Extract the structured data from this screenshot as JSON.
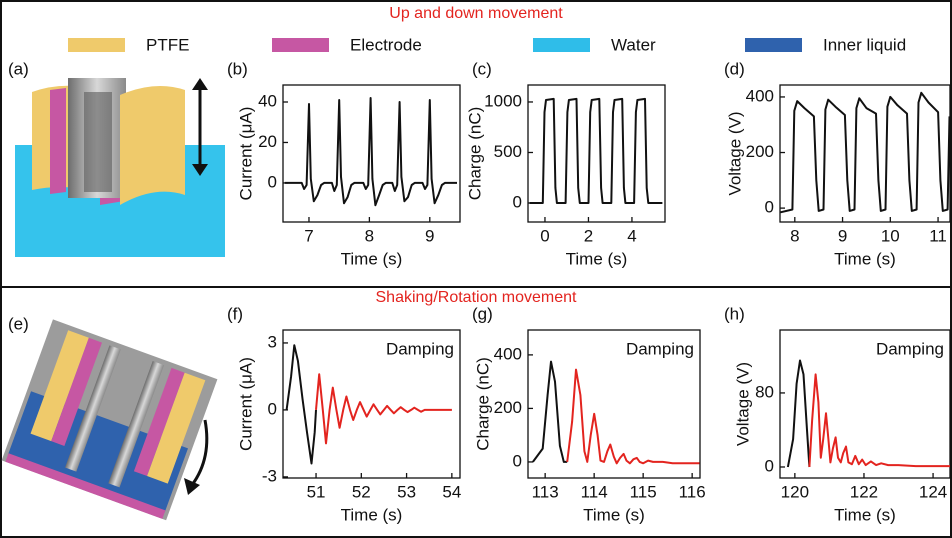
{
  "sections": [
    {
      "title": "Up and down movement"
    },
    {
      "title": "Shaking/Rotation movement"
    }
  ],
  "legend": [
    {
      "name": "PTFE",
      "color": "#efca6b"
    },
    {
      "name": "Electrode",
      "color": "#c657a3"
    },
    {
      "name": "Water",
      "color": "#2fbde9"
    },
    {
      "name": "Inner liquid",
      "color": "#2f62ad"
    }
  ],
  "illustrations": [
    {
      "panel": "(a)"
    },
    {
      "panel": "(e)"
    }
  ],
  "chart_data": [
    {
      "type": "line",
      "panel": "(b)",
      "xlabel": "Time (s)",
      "ylabel": "Current (μA)",
      "xlim": [
        6.57,
        9.5
      ],
      "ylim": [
        -19.3,
        48.4
      ],
      "xticks": [
        7,
        8,
        9
      ],
      "yticks": [
        0,
        20,
        40
      ],
      "x": [
        6.6,
        6.88,
        6.92,
        6.96,
        7.0,
        7.03,
        7.08,
        7.14,
        7.2,
        7.25,
        7.38,
        7.42,
        7.46,
        7.5,
        7.53,
        7.58,
        7.64,
        7.7,
        7.75,
        7.9,
        7.94,
        7.98,
        8.02,
        8.05,
        8.1,
        8.16,
        8.22,
        8.27,
        8.38,
        8.42,
        8.46,
        8.5,
        8.53,
        8.58,
        8.64,
        8.7,
        8.75,
        8.88,
        8.92,
        8.96,
        9.0,
        9.03,
        9.08,
        9.14,
        9.2,
        9.25,
        9.45
      ],
      "series": [
        {
          "color": "#111111",
          "values": [
            0,
            0,
            -3,
            -1,
            39,
            2,
            -9,
            -6,
            -1,
            0,
            0,
            -4,
            -1,
            41,
            3,
            -10,
            -7,
            -1,
            0,
            0,
            -3,
            -1,
            42,
            2,
            -11,
            -6,
            -1,
            0,
            0,
            -4,
            -1,
            40,
            3,
            -9,
            -7,
            -1,
            0,
            0,
            -3,
            -1,
            41,
            2,
            -10,
            -6,
            -1,
            0,
            0
          ]
        }
      ]
    },
    {
      "type": "line",
      "panel": "(c)",
      "xlabel": "Time (s)",
      "ylabel": "Charge (nC)",
      "xlim": [
        -0.78,
        5.52
      ],
      "ylim": [
        -188,
        1168
      ],
      "xticks": [
        0,
        2,
        4
      ],
      "yticks": [
        0,
        500,
        1000
      ],
      "x": [
        -0.7,
        -0.1,
        -0.02,
        0.05,
        0.4,
        0.48,
        0.55,
        0.95,
        1.03,
        1.1,
        1.45,
        1.53,
        1.6,
        2.0,
        2.08,
        2.15,
        2.5,
        2.58,
        2.65,
        3.05,
        3.13,
        3.2,
        3.55,
        3.63,
        3.7,
        4.1,
        4.18,
        4.25,
        4.6,
        4.68,
        4.75,
        5.4
      ],
      "series": [
        {
          "color": "#111111",
          "values": [
            0,
            0,
            900,
            1020,
            1030,
            150,
            0,
            0,
            900,
            1020,
            1030,
            150,
            0,
            0,
            900,
            1020,
            1030,
            150,
            0,
            0,
            900,
            1020,
            1030,
            150,
            0,
            0,
            900,
            1020,
            1030,
            150,
            0,
            0
          ]
        }
      ]
    },
    {
      "type": "line",
      "panel": "(d)",
      "xlabel": "Time (s)",
      "ylabel": "Voltage (V)",
      "xlim": [
        7.69,
        11.25
      ],
      "ylim": [
        -50,
        443
      ],
      "xticks": [
        8,
        9,
        10,
        11
      ],
      "yticks": [
        0,
        200,
        400
      ],
      "x": [
        7.7,
        7.95,
        7.99,
        8.05,
        8.2,
        8.4,
        8.45,
        8.5,
        8.6,
        8.64,
        8.7,
        8.85,
        9.05,
        9.1,
        9.15,
        9.25,
        9.29,
        9.35,
        9.5,
        9.7,
        9.75,
        9.8,
        9.9,
        9.94,
        10.0,
        10.15,
        10.35,
        10.4,
        10.45,
        10.55,
        10.59,
        10.65,
        10.8,
        11.0,
        11.05,
        11.1,
        11.2,
        11.24
      ],
      "series": [
        {
          "color": "#111111",
          "values": [
            -15,
            -5,
            350,
            385,
            360,
            330,
            100,
            -10,
            -5,
            355,
            390,
            365,
            335,
            100,
            -10,
            -5,
            360,
            395,
            360,
            340,
            100,
            -10,
            -5,
            365,
            400,
            370,
            340,
            100,
            -10,
            -5,
            380,
            415,
            380,
            345,
            100,
            -10,
            -5,
            330
          ]
        }
      ]
    },
    {
      "type": "line",
      "panel": "(f)",
      "annotation": "Damping",
      "xlabel": "Time (s)",
      "ylabel": "Current (μA)",
      "xlim": [
        50.27,
        54.18
      ],
      "ylim": [
        -3.05,
        3.58
      ],
      "xticks": [
        51,
        52,
        53,
        54
      ],
      "yticks": [
        -3,
        0,
        3
      ],
      "x": [
        50.35,
        50.45,
        50.52,
        50.6,
        50.7,
        50.8,
        50.9,
        50.97,
        51.0,
        51.07,
        51.15,
        51.22,
        51.3,
        51.37,
        51.45,
        51.52,
        51.6,
        51.67,
        51.75,
        51.82,
        51.9,
        51.97,
        52.05,
        52.12,
        52.2,
        52.27,
        52.35,
        52.42,
        52.5,
        52.57,
        52.65,
        52.72,
        52.8,
        52.87,
        52.95,
        53.02,
        53.1,
        53.17,
        53.25,
        53.32,
        53.4,
        53.6,
        54.0
      ],
      "series": [
        {
          "color": "#111111",
          "values": [
            0,
            1.5,
            2.9,
            2.2,
            0.5,
            -1.0,
            -2.4,
            -1.0,
            0,
            null,
            null,
            null,
            null,
            null,
            null,
            null,
            null,
            null,
            null,
            null,
            null,
            null,
            null,
            null,
            null,
            null,
            null,
            null,
            null,
            null,
            null,
            null,
            null,
            null,
            null,
            null,
            null,
            null,
            null,
            null,
            null,
            null,
            null
          ]
        },
        {
          "color": "#e3241f",
          "values": [
            null,
            null,
            null,
            null,
            null,
            null,
            null,
            null,
            0,
            1.6,
            0,
            -1.5,
            0,
            1.0,
            0,
            -0.8,
            0,
            0.6,
            0,
            -0.45,
            0,
            0.35,
            0,
            -0.3,
            0,
            0.25,
            0,
            -0.2,
            0,
            0.18,
            0,
            -0.15,
            0,
            0.12,
            0,
            -0.1,
            0,
            0.1,
            0,
            -0.08,
            0,
            0,
            0
          ]
        }
      ]
    },
    {
      "type": "line",
      "panel": "(g)",
      "annotation": "Damping",
      "xlabel": "Time (s)",
      "ylabel": "Charge (nC)",
      "xlim": [
        112.65,
        116.16
      ],
      "ylim": [
        -60,
        493
      ],
      "xticks": [
        113,
        114,
        115,
        116
      ],
      "yticks": [
        0,
        200,
        400
      ],
      "x": [
        112.75,
        112.95,
        113.05,
        113.12,
        113.2,
        113.3,
        113.38,
        113.45,
        113.55,
        113.63,
        113.72,
        113.8,
        113.86,
        113.93,
        114.0,
        114.07,
        114.13,
        114.2,
        114.27,
        114.33,
        114.4,
        114.46,
        114.53,
        114.6,
        114.66,
        114.73,
        114.8,
        114.87,
        114.93,
        115.0,
        115.1,
        115.2,
        115.4,
        115.6,
        116.0,
        116.15
      ],
      "series": [
        {
          "color": "#111111",
          "values": [
            0,
            50,
            250,
            375,
            300,
            60,
            0,
            0,
            null,
            null,
            null,
            null,
            null,
            null,
            null,
            null,
            null,
            null,
            null,
            null,
            null,
            null,
            null,
            null,
            null,
            null,
            null,
            null,
            null,
            null,
            null,
            null,
            null,
            null,
            null,
            null
          ]
        },
        {
          "color": "#e3241f",
          "values": [
            null,
            null,
            null,
            null,
            null,
            null,
            null,
            0,
            150,
            345,
            250,
            40,
            0,
            100,
            180,
            100,
            5,
            0,
            40,
            65,
            20,
            -5,
            15,
            30,
            5,
            -5,
            10,
            15,
            0,
            -5,
            5,
            0,
            0,
            -5,
            -5,
            -5
          ]
        }
      ]
    },
    {
      "type": "line",
      "panel": "(h)",
      "annotation": "Damping",
      "xlabel": "Time (s)",
      "ylabel": "Voltage (V)",
      "xlim": [
        119.57,
        124.49
      ],
      "ylim": [
        -11.9,
        148
      ],
      "xticks": [
        120,
        122,
        124
      ],
      "yticks": [
        0,
        80
      ],
      "x": [
        119.8,
        119.95,
        120.05,
        120.15,
        120.25,
        120.35,
        120.42,
        120.5,
        120.6,
        120.68,
        120.75,
        120.82,
        120.9,
        120.97,
        121.03,
        121.1,
        121.18,
        121.25,
        121.33,
        121.4,
        121.48,
        121.55,
        121.65,
        121.75,
        121.85,
        121.95,
        122.05,
        122.2,
        122.35,
        122.5,
        122.7,
        123.0,
        123.5,
        124.0,
        124.49
      ],
      "series": [
        {
          "color": "#111111",
          "values": [
            0,
            30,
            90,
            115,
            100,
            40,
            0,
            null,
            null,
            null,
            null,
            null,
            null,
            null,
            null,
            null,
            null,
            null,
            null,
            null,
            null,
            null,
            null,
            null,
            null,
            null,
            null,
            null,
            null,
            null,
            null,
            null,
            null,
            null,
            null
          ]
        },
        {
          "color": "#e3241f",
          "values": [
            null,
            null,
            null,
            null,
            null,
            null,
            0,
            50,
            100,
            70,
            10,
            30,
            58,
            30,
            5,
            20,
            32,
            10,
            5,
            15,
            22,
            5,
            3,
            12,
            3,
            8,
            2,
            6,
            2,
            4,
            2,
            2,
            1,
            1,
            1
          ]
        }
      ]
    }
  ]
}
